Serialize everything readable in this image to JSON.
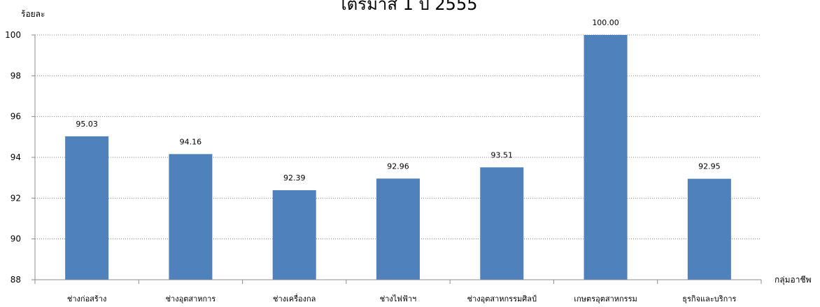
{
  "chart_data": {
    "type": "bar",
    "title": "ไตรมาส 1 ปี 2555",
    "ylabel": "ร้อยละ",
    "xlabel": "กลุ่มอาชีพ",
    "categories": [
      "ช่างก่อสร้าง",
      "ช่างอุตสาหการ",
      "ช่างเครื่องกล",
      "ช่างไฟฟ้าฯ",
      "ช่างอุตสาหกรรมศิลป์",
      "เกษตรอุตสาหกรรม",
      "ธุรกิจและบริการ"
    ],
    "values": [
      95.03,
      94.16,
      92.39,
      92.96,
      93.51,
      100.0,
      92.95
    ],
    "value_labels": [
      "95.03",
      "94.16",
      "92.39",
      "92.96",
      "93.51",
      "100.00",
      "92.95"
    ],
    "ylim": [
      88,
      100
    ],
    "yticks": [
      88,
      90,
      92,
      94,
      96,
      98,
      100
    ],
    "grid": true,
    "bar_color": "#4f81bd"
  }
}
